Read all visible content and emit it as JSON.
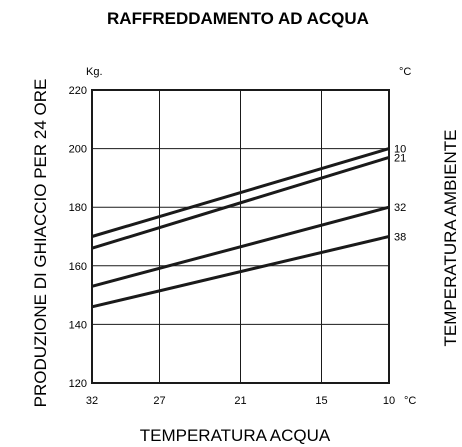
{
  "chart_data": {
    "type": "line",
    "title": "RAFFREDDAMENTO AD ACQUA",
    "xlabel": "TEMPERATURA  ACQUA",
    "ylabel": "PRODUZIONE DI GHIACCIO PER 24 ORE",
    "y2label": "TEMPERATURA  AMBIENTE",
    "y_unit": "Kg.",
    "y2_unit": "°C",
    "x_unit": "°C",
    "x_ticks": [
      32,
      27,
      21,
      15,
      10
    ],
    "y_ticks": [
      120,
      140,
      160,
      180,
      200,
      220
    ],
    "xlim": [
      32,
      10
    ],
    "ylim": [
      120,
      220
    ],
    "grid": true,
    "series": [
      {
        "name": "10",
        "x": [
          32,
          10
        ],
        "y": [
          170,
          200
        ]
      },
      {
        "name": "21",
        "x": [
          32,
          10
        ],
        "y": [
          166,
          197
        ]
      },
      {
        "name": "32",
        "x": [
          32,
          10
        ],
        "y": [
          153,
          180
        ]
      },
      {
        "name": "38",
        "x": [
          32,
          10
        ],
        "y": [
          146,
          170
        ]
      }
    ]
  }
}
